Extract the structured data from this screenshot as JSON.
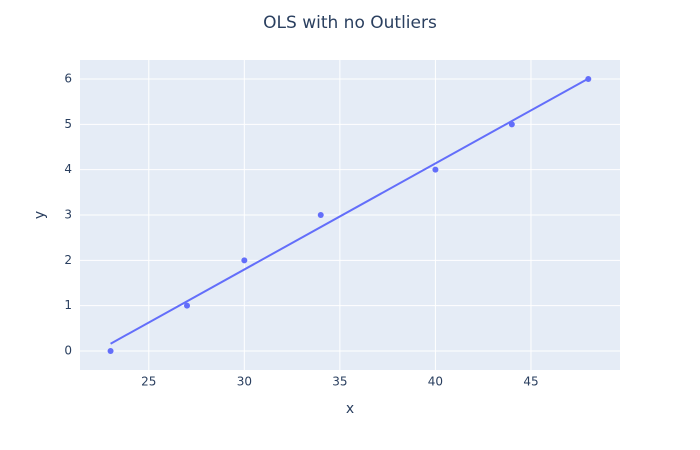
{
  "chart_data": {
    "type": "scatter",
    "title": "OLS with no Outliers",
    "x_label": "x",
    "y_label": "y",
    "series": [
      {
        "mode": "markers",
        "color": "#636efa",
        "x": [
          23,
          27,
          30,
          34,
          40,
          44,
          48
        ],
        "values": [
          0,
          1,
          2,
          3,
          4,
          5,
          6
        ]
      },
      {
        "mode": "lines",
        "color": "#636efa",
        "x": [
          23,
          48
        ],
        "values": [
          0.16,
          6.01
        ]
      }
    ],
    "xlim": [
      21.4,
      49.66
    ],
    "xticks": [
      25,
      30,
      35,
      40,
      45
    ],
    "ylim": [
      -0.42,
      6.42
    ],
    "yticks": [
      0,
      1,
      2,
      3,
      4,
      5,
      6
    ],
    "grid": true
  }
}
